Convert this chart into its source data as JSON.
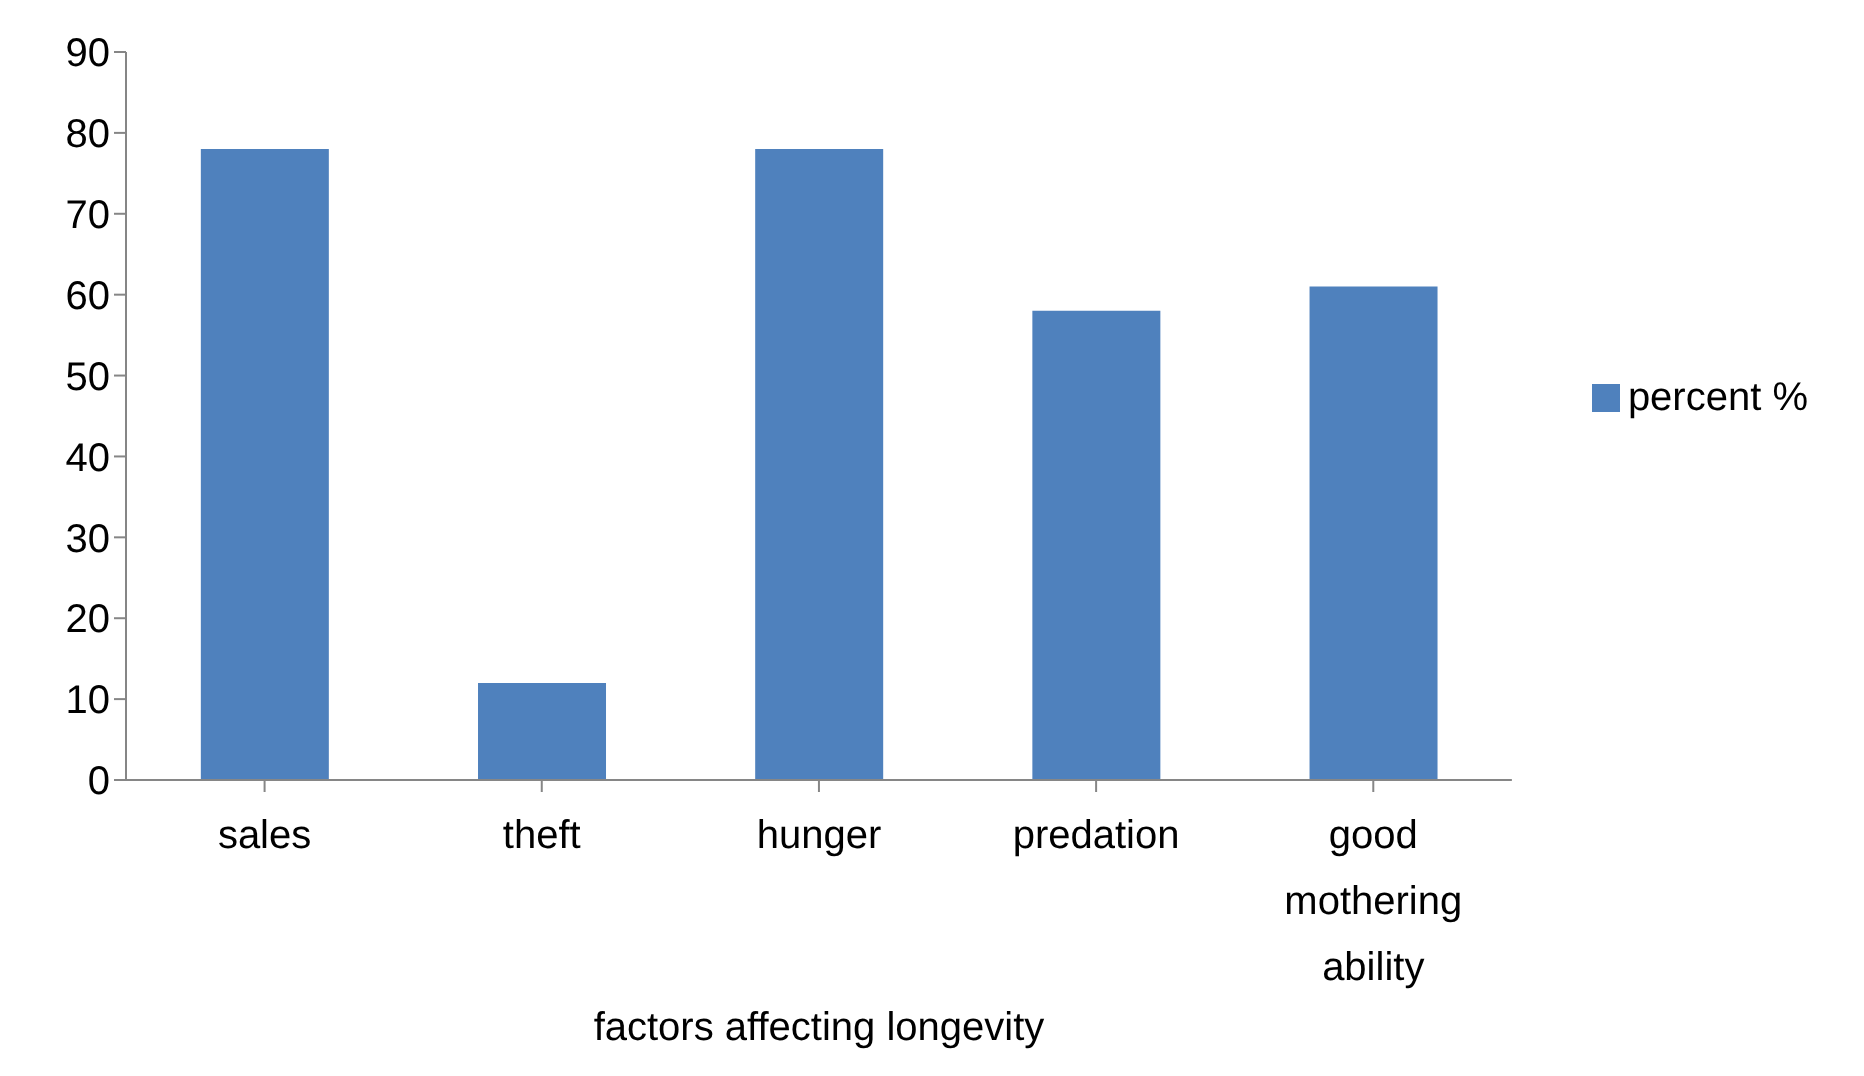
{
  "chart_data": {
    "type": "bar",
    "xlabel": "factors affecting longevity",
    "categories": [
      "sales",
      "theft",
      "hunger",
      "predation",
      "good mothering ability"
    ],
    "series": [
      {
        "name": "percent %",
        "color": "#4f81bd",
        "values": [
          78,
          12,
          78,
          58,
          61
        ]
      }
    ],
    "ylim": [
      0,
      90
    ],
    "yticks": [
      0,
      10,
      20,
      30,
      40,
      50,
      60,
      70,
      80,
      90
    ],
    "grid": false,
    "legend": "right"
  }
}
